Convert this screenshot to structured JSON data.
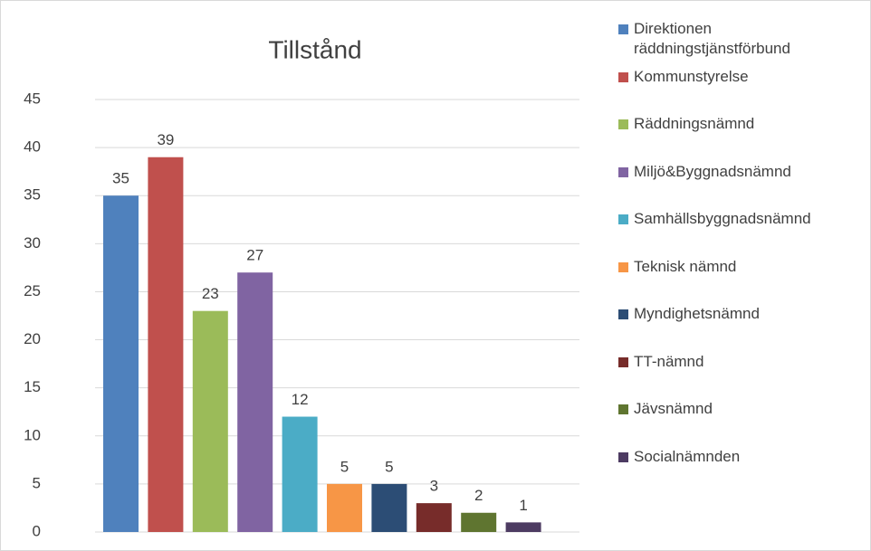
{
  "chart_data": {
    "type": "bar",
    "title": "Tillstånd",
    "categories": [
      null
    ],
    "series": [
      {
        "name": "Direktionen räddningstjänstförbund",
        "color": "#4f81bd",
        "values": [
          35
        ]
      },
      {
        "name": "Kommunstyrelse",
        "color": "#c0504d",
        "values": [
          39
        ]
      },
      {
        "name": "Räddningsnämnd",
        "color": "#9bbb59",
        "values": [
          23
        ]
      },
      {
        "name": "Miljö&Byggnadsnämnd",
        "color": "#8064a2",
        "values": [
          27
        ]
      },
      {
        "name": "Samhällsbyggnadsnämnd",
        "color": "#4bacc6",
        "values": [
          12
        ]
      },
      {
        "name": "Teknisk nämnd",
        "color": "#f79646",
        "values": [
          5
        ]
      },
      {
        "name": "Myndighetsnämnd",
        "color": "#2c4d75",
        "values": [
          5
        ]
      },
      {
        "name": "TT-nämnd",
        "color": "#772c2a",
        "values": [
          3
        ]
      },
      {
        "name": "Jävsnämnd",
        "color": "#5f7530",
        "values": [
          2
        ]
      },
      {
        "name": "Socialnämnden",
        "color": "#4d3b62",
        "values": [
          1
        ]
      }
    ],
    "ylim": [
      0,
      45
    ],
    "yticks": [
      0,
      5,
      10,
      15,
      20,
      25,
      30,
      35,
      40,
      45
    ],
    "grid": true,
    "legend": "right"
  }
}
